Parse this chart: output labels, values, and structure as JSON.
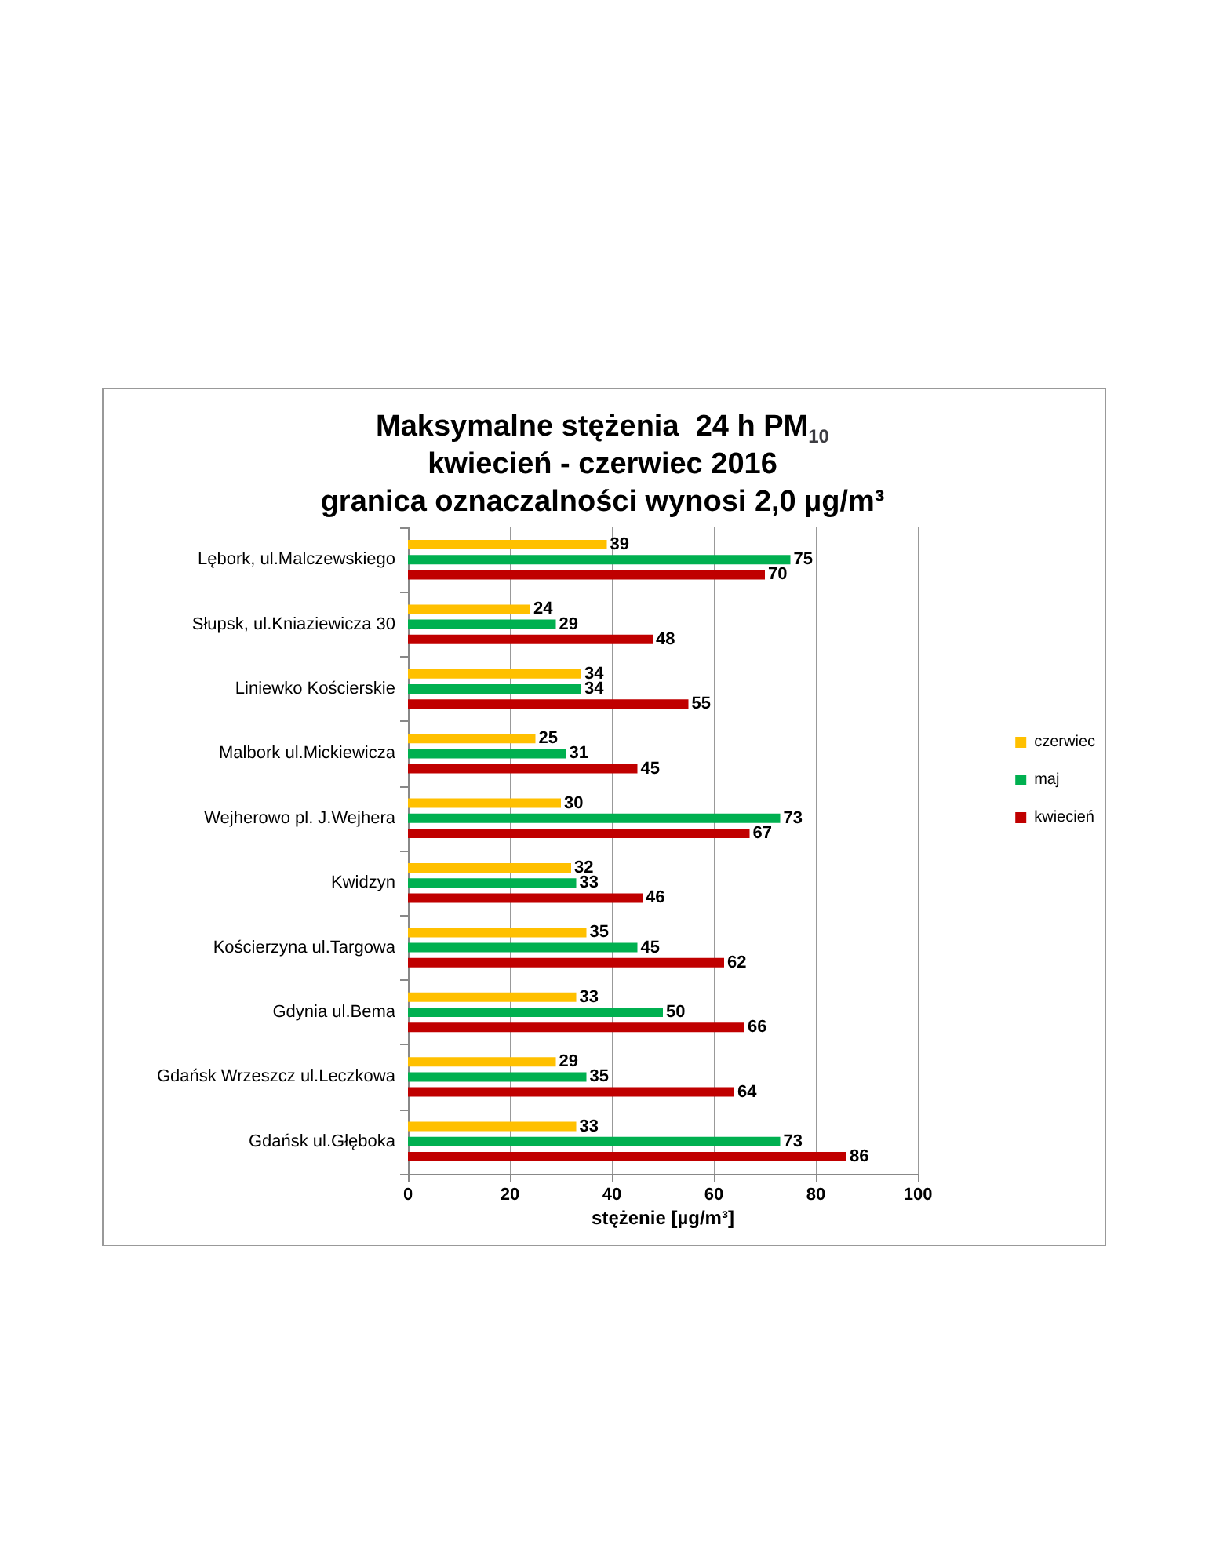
{
  "chart_data": {
    "type": "bar",
    "orientation": "horizontal",
    "title": "Maksymalne stężenia  24 h PM$_{10}$\nkwiecień - czerwiec 2016\ngranica oznaczalności wynosi 2,0 µg/m³",
    "xlabel": "stężenie [µg/m³]",
    "categories": [
      "Lębork, ul.Malczewskiego",
      "Słupsk, ul.Kniaziewicza 30",
      "Liniewko Kościerskie",
      "Malbork ul.Mickiewicza",
      "Wejherowo pl. J.Wejhera",
      "Kwidzyn",
      "Kościerzyna ul.Targowa",
      "Gdynia ul.Bema",
      "Gdańsk Wrzeszcz ul.Leczkowa",
      "Gdańsk ul.Głęboka"
    ],
    "series": [
      {
        "name": "czerwiec",
        "color": "#ffc000",
        "values": [
          39,
          24,
          34,
          25,
          30,
          32,
          35,
          33,
          29,
          33
        ]
      },
      {
        "name": "maj",
        "color": "#00b050",
        "values": [
          75,
          29,
          34,
          31,
          73,
          33,
          45,
          50,
          35,
          73
        ]
      },
      {
        "name": "kwiecień",
        "color": "#c00000",
        "values": [
          70,
          48,
          55,
          45,
          67,
          46,
          62,
          66,
          64,
          86
        ]
      }
    ],
    "xlim": [
      0,
      100
    ],
    "xticks": [
      0,
      20,
      40,
      60,
      80,
      100
    ],
    "grid": "x",
    "legend": "right",
    "data_labels": true
  }
}
